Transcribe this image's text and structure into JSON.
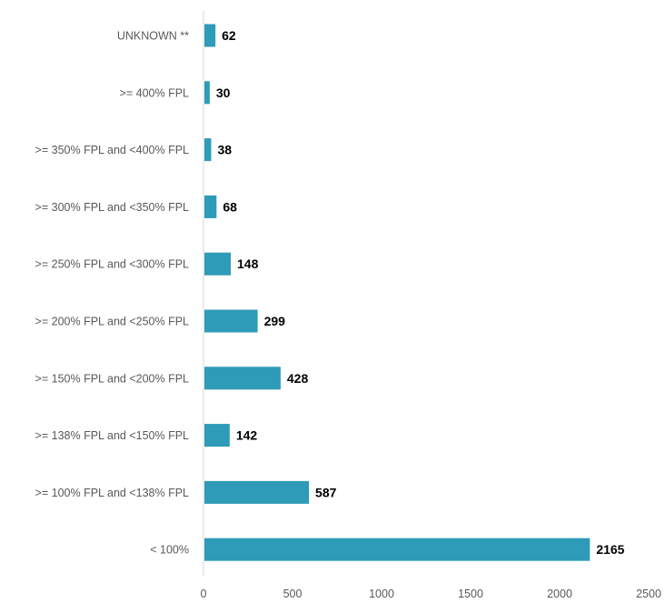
{
  "chart_data": {
    "type": "bar",
    "orientation": "horizontal",
    "categories": [
      "UNKNOWN **",
      ">= 400% FPL",
      ">= 350% FPL and  <400% FPL",
      ">= 300% FPL and  <350% FPL",
      ">= 250% FPL and  <300% FPL",
      ">= 200% FPL and  <250% FPL",
      ">= 150% FPL and  <200% FPL",
      ">= 138% FPL and  <150% FPL",
      ">= 100% FPL and  <138% FPL",
      "< 100%"
    ],
    "values": [
      62,
      30,
      38,
      68,
      148,
      299,
      428,
      142,
      587,
      2165
    ],
    "xlim": [
      0,
      2500
    ],
    "xticks": [
      0,
      500,
      1000,
      1500,
      2000,
      2500
    ],
    "grid": false,
    "legend": "none",
    "bar_color": "#2E9BB8",
    "axis_color": "#D9D9D9"
  }
}
